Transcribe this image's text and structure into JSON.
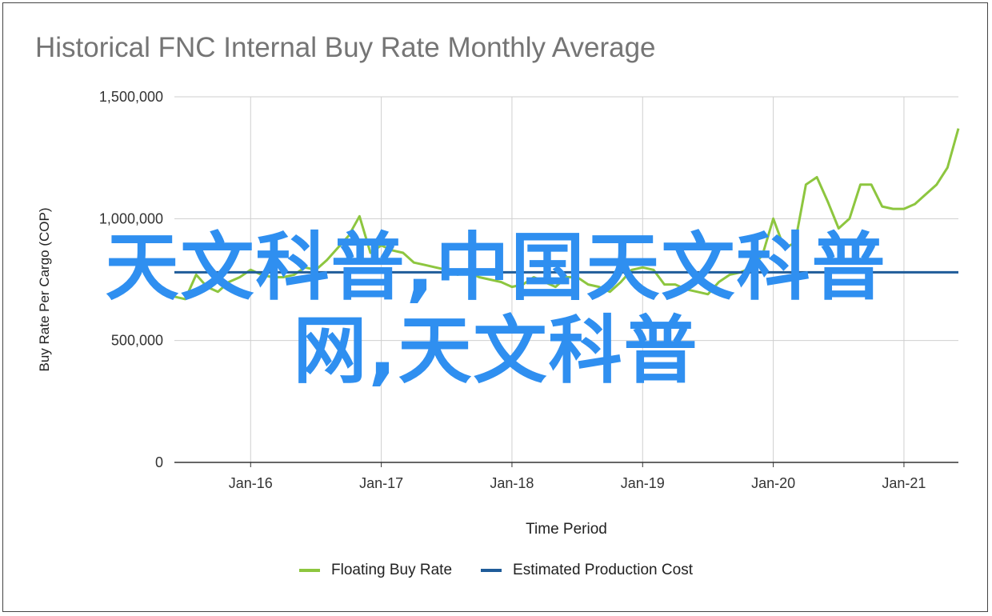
{
  "chart_data": {
    "type": "line",
    "title": "Historical FNC Internal Buy Rate Monthly Average",
    "xlabel": "Time Period",
    "ylabel": "Buy Rate Per Cargo (COP)",
    "ylim": [
      0,
      1500000
    ],
    "yticks": [
      0,
      500000,
      1000000,
      1500000
    ],
    "ytick_labels": [
      "0",
      "500,000",
      "1,000,000",
      "1,500,000"
    ],
    "xlim": [
      "2015-06",
      "2021-06"
    ],
    "xtick_labels": [
      "Jan-16",
      "Jan-17",
      "Jan-18",
      "Jan-19",
      "Jan-20",
      "Jan-21"
    ],
    "xtick_dates": [
      "2016-01",
      "2017-01",
      "2018-01",
      "2019-01",
      "2020-01",
      "2021-01"
    ],
    "grid": true,
    "legend_position": "bottom",
    "series": [
      {
        "name": "Floating Buy Rate",
        "color": "#8dc63f",
        "x": [
          "2015-06",
          "2015-07",
          "2015-08",
          "2015-09",
          "2015-10",
          "2015-11",
          "2015-12",
          "2016-01",
          "2016-02",
          "2016-03",
          "2016-04",
          "2016-05",
          "2016-06",
          "2016-07",
          "2016-08",
          "2016-09",
          "2016-10",
          "2016-11",
          "2016-12",
          "2017-01",
          "2017-02",
          "2017-03",
          "2017-04",
          "2017-05",
          "2017-06",
          "2017-07",
          "2017-08",
          "2017-09",
          "2017-10",
          "2017-11",
          "2017-12",
          "2018-01",
          "2018-02",
          "2018-03",
          "2018-04",
          "2018-05",
          "2018-06",
          "2018-07",
          "2018-08",
          "2018-09",
          "2018-10",
          "2018-11",
          "2018-12",
          "2019-01",
          "2019-02",
          "2019-03",
          "2019-04",
          "2019-05",
          "2019-06",
          "2019-07",
          "2019-08",
          "2019-09",
          "2019-10",
          "2019-11",
          "2019-12",
          "2020-01",
          "2020-02",
          "2020-03",
          "2020-04",
          "2020-05",
          "2020-06",
          "2020-07",
          "2020-08",
          "2020-09",
          "2020-10",
          "2020-11",
          "2020-12",
          "2021-01",
          "2021-02",
          "2021-03",
          "2021-04",
          "2021-05",
          "2021-06"
        ],
        "values": [
          680000,
          670000,
          770000,
          720000,
          700000,
          740000,
          760000,
          790000,
          770000,
          760000,
          760000,
          770000,
          800000,
          790000,
          830000,
          880000,
          930000,
          1010000,
          860000,
          890000,
          870000,
          860000,
          820000,
          810000,
          800000,
          790000,
          770000,
          780000,
          760000,
          750000,
          740000,
          720000,
          730000,
          760000,
          740000,
          720000,
          760000,
          760000,
          730000,
          720000,
          700000,
          740000,
          790000,
          800000,
          790000,
          730000,
          730000,
          710000,
          700000,
          690000,
          740000,
          770000,
          780000,
          800000,
          850000,
          1000000,
          880000,
          900000,
          1140000,
          1170000,
          1070000,
          960000,
          1000000,
          1140000,
          1140000,
          1050000,
          1040000,
          1040000,
          1060000,
          1100000,
          1140000,
          1210000,
          1370000
        ]
      },
      {
        "name": "Estimated Production Cost",
        "color": "#1f5c99",
        "x": [
          "2015-06",
          "2021-06"
        ],
        "values": [
          780000,
          780000
        ]
      }
    ]
  },
  "watermark": {
    "line1": "天文科普,中国天文科普",
    "line2": "网,天文科普"
  }
}
